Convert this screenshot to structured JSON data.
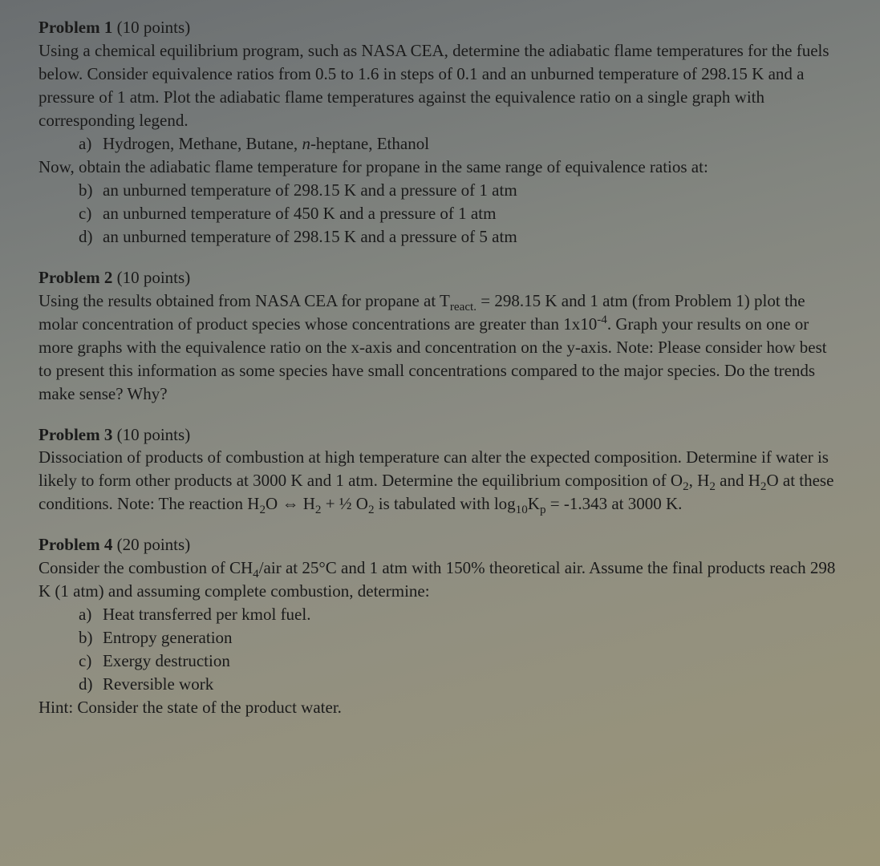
{
  "p1": {
    "title": "Problem 1",
    "points": " (10 points)",
    "intro1": "Using a chemical equilibrium program, such as NASA CEA, determine the adiabatic flame temperatures for the fuels below. Consider equivalence ratios from 0.5 to 1.6 in steps of 0.1 and an unburned temperature of 298.15 K and a pressure of 1 atm. Plot the adiabatic flame temperatures against the equivalence ratio on a single graph with corresponding legend.",
    "a_label": "a)",
    "a_text_pre": "Hydrogen, Methane, Butane, ",
    "a_text_ital": "n",
    "a_text_post": "-heptane, Ethanol",
    "intro2": "Now, obtain the adiabatic flame temperature for propane in the same range of equivalence ratios at:",
    "b_label": "b)",
    "b_text": "an unburned temperature of 298.15 K and a pressure of 1 atm",
    "c_label": "c)",
    "c_text": "an unburned temperature of 450 K and a pressure of 1 atm",
    "d_label": "d)",
    "d_text": "an unburned temperature of 298.15 K and a pressure of 5 atm"
  },
  "p2": {
    "title": "Problem 2",
    "points": " (10 points)",
    "t1": "Using the results obtained from NASA CEA for propane at T",
    "sub1": "react.",
    "t2": " = 298.15 K and 1 atm (from Problem 1) plot the molar concentration of product species whose concentrations are greater than 1x10",
    "sup1": "-4",
    "t3": ". Graph your results on one or more graphs with the equivalence ratio on the x-axis and concentration on the y-axis. Note: Please consider how best to present this information as some species have small concentrations compared to the major species. Do the trends make sense? Why?"
  },
  "p3": {
    "title": "Problem 3",
    "points": " (10 points)",
    "t1": "Dissociation of products of combustion at high temperature can alter the expected composition. Determine if water is likely to form other products at 3000 K and 1 atm. Determine the equilibrium composition of O",
    "s1": "2",
    "t2": ", H",
    "s2": "2",
    "t3": " and H",
    "s3": "2",
    "t4": "O at these conditions. Note: The reaction H",
    "s4": "2",
    "t5": "O ⇔ H",
    "s5": "2",
    "t6": " + ½ O",
    "s6": "2",
    "t7": " is tabulated with log",
    "s7": "10",
    "t8": "K",
    "s8": "p",
    "t9": " = -1.343 at 3000 K."
  },
  "p4": {
    "title": "Problem 4",
    "points": " (20 points)",
    "t1": "Consider the combustion of CH",
    "s1": "4",
    "t2": "/air at 25°C and 1 atm with 150% theoretical air. Assume the final products reach 298 K (1 atm) and assuming complete combustion, determine:",
    "a_label": "a)",
    "a_text": "Heat transferred per kmol fuel.",
    "b_label": "b)",
    "b_text": "Entropy generation",
    "c_label": "c)",
    "c_text": "Exergy destruction",
    "d_label": "d)",
    "d_text": "Reversible work",
    "hint": "Hint: Consider the state of the product water."
  }
}
